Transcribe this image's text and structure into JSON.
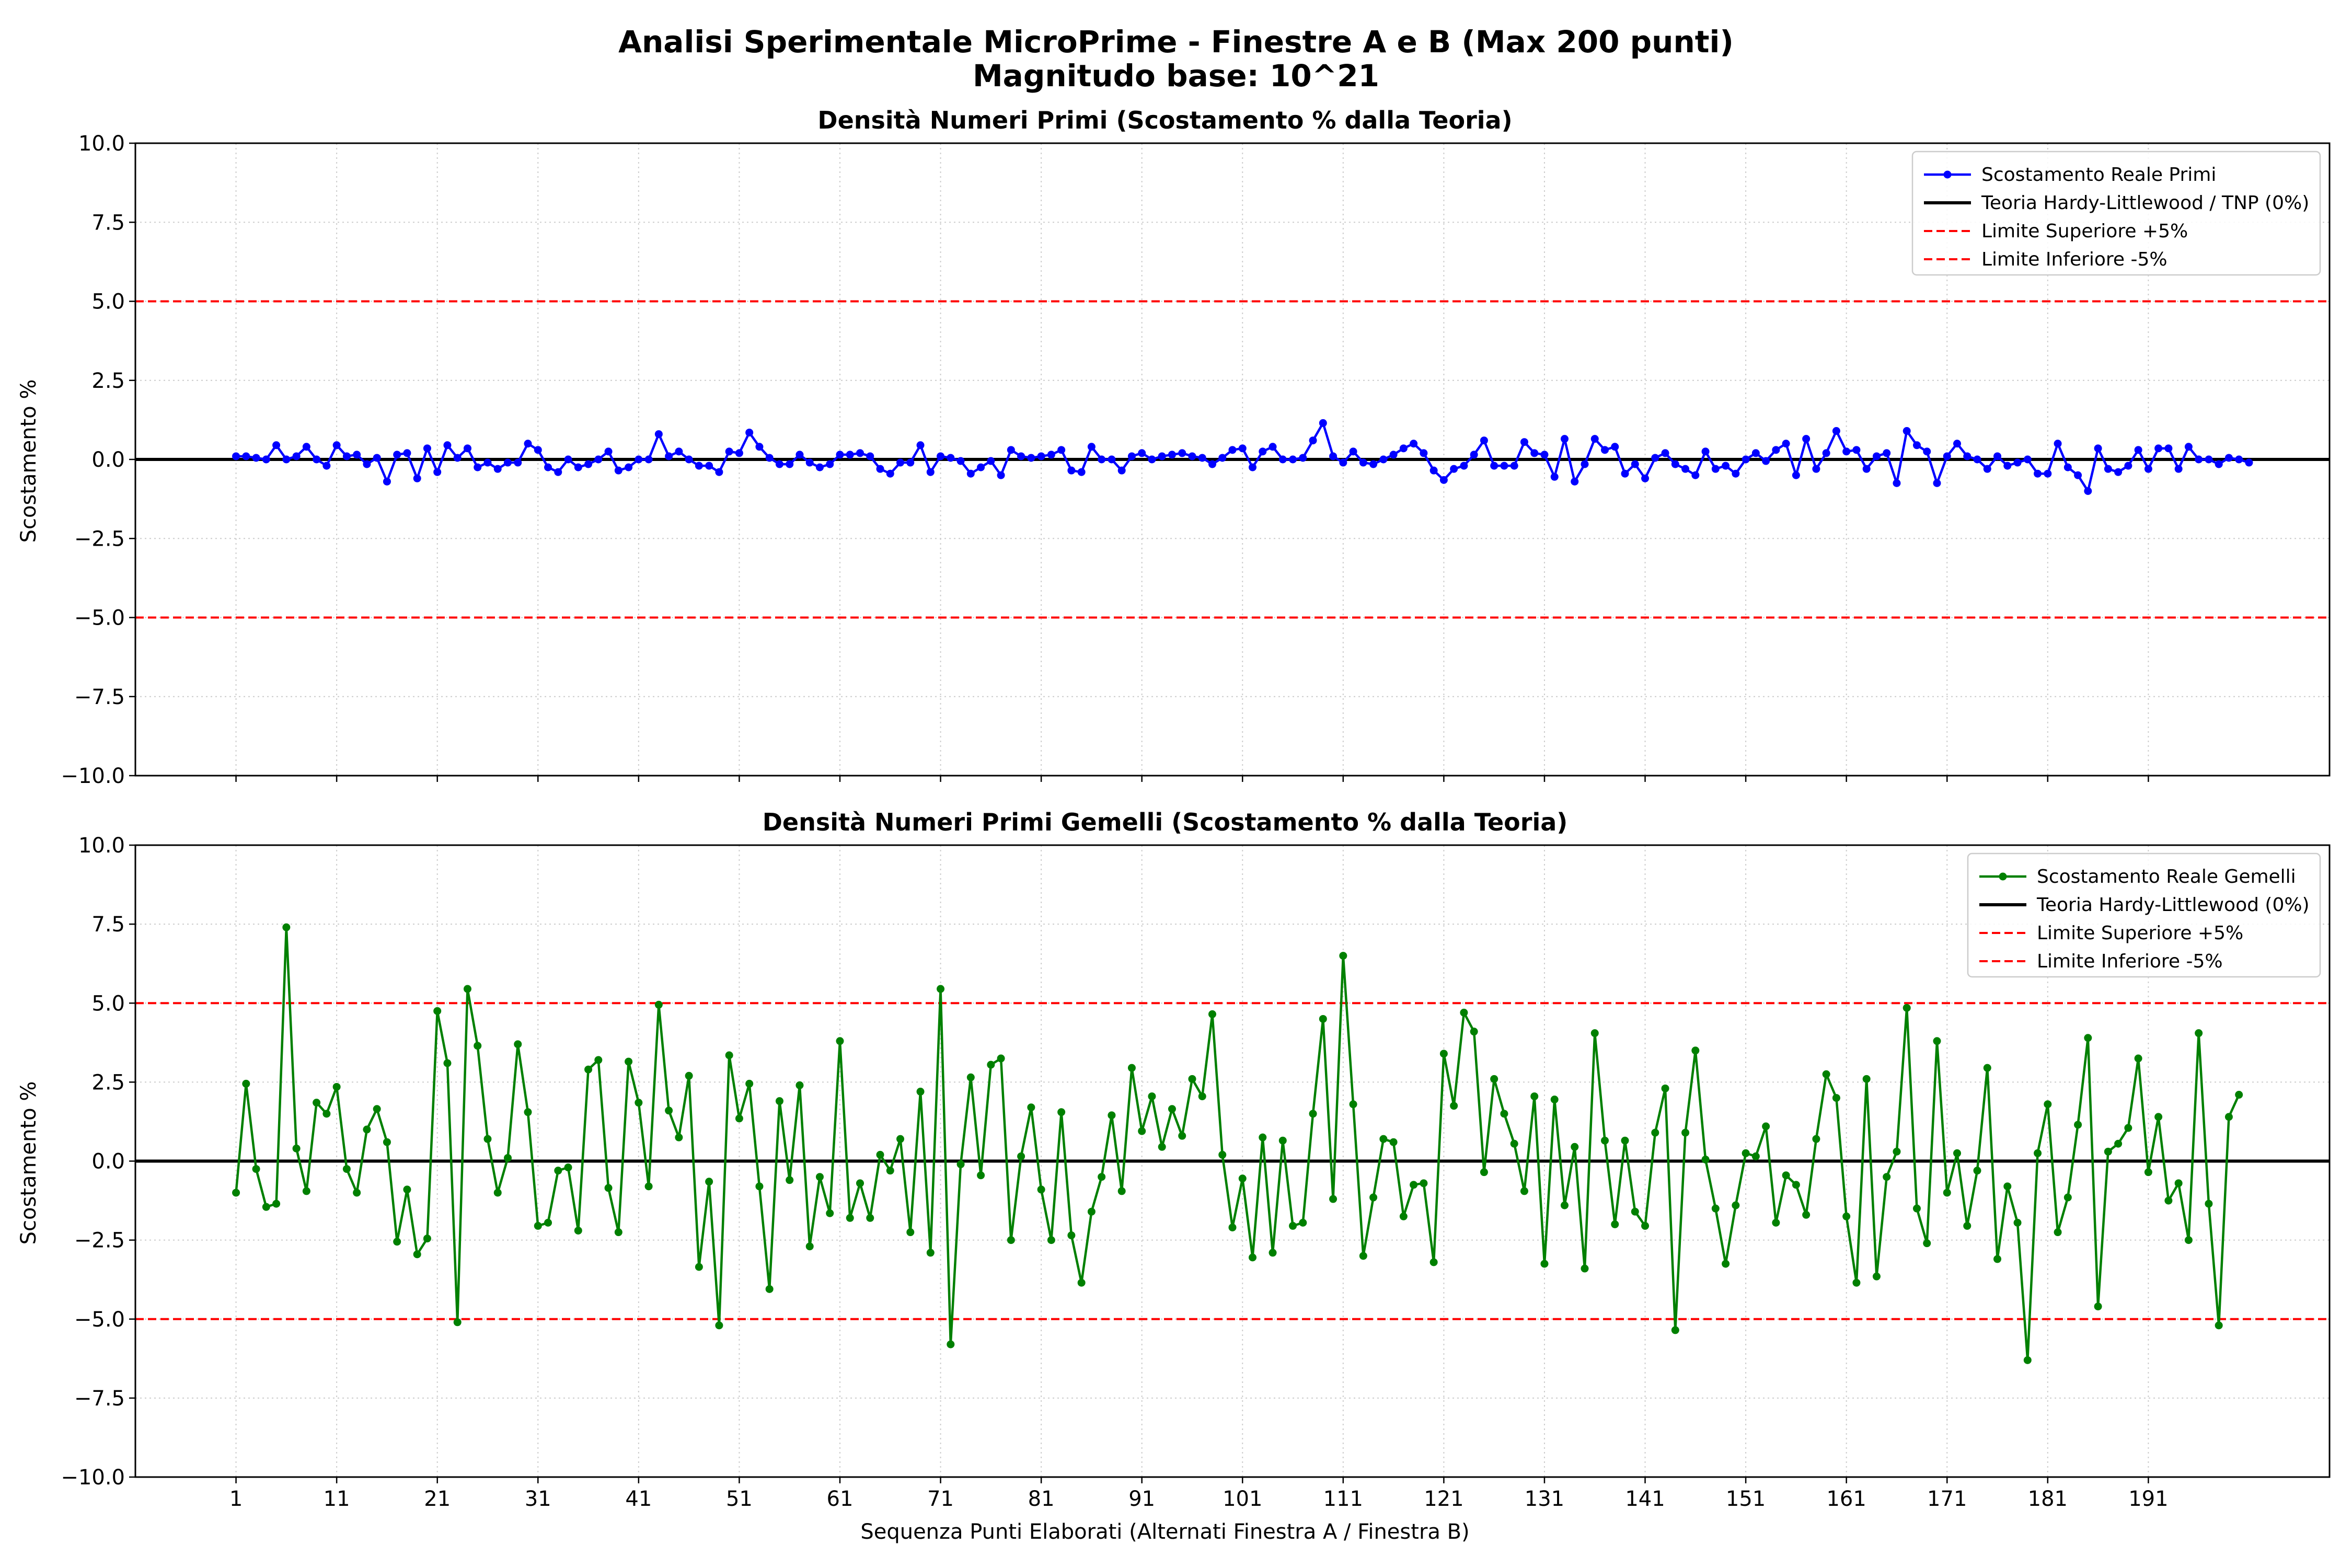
{
  "figure": {
    "title_line1": "Analisi Sperimentale MicroPrime - Finestre A e B (Max 200 punti)",
    "title_line2": "Magnitudo base: 10^21",
    "xlabel": "Sequenza Punti Elaborati (Alternati Finestra A / Finestra B)"
  },
  "chart_data": [
    {
      "type": "line",
      "title": "Densità Numeri Primi (Scostamento % dalla Teoria)",
      "xlabel": "",
      "ylabel": "Scostamento %",
      "xlim": [
        -9,
        209
      ],
      "ylim": [
        -10,
        10
      ],
      "yticks": [
        "10.0",
        "7.5",
        "5.0",
        "2.5",
        "0.0",
        "−2.5",
        "−5.0",
        "−7.5",
        "−10.0"
      ],
      "ytick_values": [
        10,
        7.5,
        5,
        2.5,
        0,
        -2.5,
        -5,
        -7.5,
        -10
      ],
      "xticks": [
        1,
        11,
        21,
        31,
        41,
        51,
        61,
        71,
        81,
        91,
        101,
        111,
        121,
        131,
        141,
        151,
        161,
        171,
        181,
        191
      ],
      "show_xtick_labels": false,
      "grid": true,
      "legend_position": "upper right",
      "series": [
        {
          "name": "Scostamento Reale Primi",
          "color": "#0000ff",
          "style": "line-marker",
          "x_start": 1,
          "values": [
            0.1,
            0.1,
            0.05,
            0.0,
            0.45,
            0.0,
            0.1,
            0.4,
            0.0,
            -0.2,
            0.45,
            0.1,
            0.15,
            -0.15,
            0.05,
            -0.7,
            0.15,
            0.2,
            -0.6,
            0.35,
            -0.4,
            0.45,
            0.05,
            0.35,
            -0.25,
            -0.1,
            -0.3,
            -0.1,
            -0.1,
            0.5,
            0.3,
            -0.25,
            -0.4,
            0.0,
            -0.25,
            -0.15,
            0.0,
            0.25,
            -0.35,
            -0.25,
            0.0,
            0.0,
            0.8,
            0.1,
            0.25,
            0.0,
            -0.2,
            -0.2,
            -0.4,
            0.25,
            0.2,
            0.85,
            0.4,
            0.05,
            -0.15,
            -0.15,
            0.15,
            -0.1,
            -0.25,
            -0.15,
            0.15,
            0.15,
            0.2,
            0.1,
            -0.3,
            -0.45,
            -0.1,
            -0.1,
            0.45,
            -0.4,
            0.1,
            0.05,
            -0.05,
            -0.45,
            -0.25,
            -0.05,
            -0.5,
            0.3,
            0.1,
            0.05,
            0.1,
            0.15,
            0.3,
            -0.35,
            -0.4,
            0.4,
            0.0,
            0.0,
            -0.35,
            0.1,
            0.2,
            0.0,
            0.1,
            0.15,
            0.2,
            0.1,
            0.05,
            -0.15,
            0.05,
            0.3,
            0.35,
            -0.25,
            0.25,
            0.4,
            0.0,
            0.0,
            0.05,
            0.6,
            1.15,
            0.1,
            -0.1,
            0.25,
            -0.1,
            -0.15,
            0.0,
            0.15,
            0.35,
            0.5,
            0.2,
            -0.35,
            -0.65,
            -0.3,
            -0.2,
            0.15,
            0.6,
            -0.2,
            -0.2,
            -0.2,
            0.55,
            0.2,
            0.15,
            -0.55,
            0.65,
            -0.7,
            -0.15,
            0.65,
            0.3,
            0.4,
            -0.45,
            -0.15,
            -0.6,
            0.05,
            0.2,
            -0.15,
            -0.3,
            -0.5,
            0.25,
            -0.3,
            -0.2,
            -0.45,
            0.0,
            0.2,
            -0.05,
            0.3,
            0.5,
            -0.5,
            0.65,
            -0.3,
            0.2,
            0.9,
            0.25,
            0.3,
            -0.3,
            0.1,
            0.2,
            -0.75,
            0.9,
            0.45,
            0.25,
            -0.75,
            0.1,
            0.5,
            0.1,
            0.0,
            -0.3,
            0.1,
            -0.2,
            -0.1,
            0.0,
            -0.45,
            -0.45,
            0.5,
            -0.25,
            -0.5,
            -1.0,
            0.35,
            -0.3,
            -0.4,
            -0.2,
            0.3,
            -0.3,
            0.35,
            0.35,
            -0.3,
            0.4,
            0.0,
            0.0,
            -0.15,
            0.05,
            0.0,
            -0.1
          ]
        },
        {
          "name": "Teoria Hardy-Littlewood / TNP (0%)",
          "color": "#000000",
          "style": "hline",
          "y": 0
        },
        {
          "name": "Limite Superiore +5%",
          "color": "#ff0000",
          "style": "dashed-hline",
          "y": 5
        },
        {
          "name": "Limite Inferiore -5%",
          "color": "#ff0000",
          "style": "dashed-hline",
          "y": -5
        }
      ]
    },
    {
      "type": "line",
      "title": "Densità Numeri Primi Gemelli (Scostamento % dalla Teoria)",
      "xlabel": "Sequenza Punti Elaborati (Alternati Finestra A / Finestra B)",
      "ylabel": "Scostamento %",
      "xlim": [
        -9,
        209
      ],
      "ylim": [
        -10,
        10
      ],
      "yticks": [
        "10.0",
        "7.5",
        "5.0",
        "2.5",
        "0.0",
        "−2.5",
        "−5.0",
        "−7.5",
        "−10.0"
      ],
      "ytick_values": [
        10,
        7.5,
        5,
        2.5,
        0,
        -2.5,
        -5,
        -7.5,
        -10
      ],
      "xticks": [
        1,
        11,
        21,
        31,
        41,
        51,
        61,
        71,
        81,
        91,
        101,
        111,
        121,
        131,
        141,
        151,
        161,
        171,
        181,
        191
      ],
      "show_xtick_labels": true,
      "grid": true,
      "legend_position": "upper right",
      "series": [
        {
          "name": "Scostamento Reale Gemelli",
          "color": "#008000",
          "style": "line-marker",
          "x_start": 1,
          "values": [
            -1.0,
            2.45,
            -0.25,
            -1.45,
            -1.35,
            7.4,
            0.4,
            -0.95,
            1.85,
            1.5,
            2.35,
            -0.25,
            -1.0,
            1.0,
            1.65,
            0.6,
            -2.55,
            -0.9,
            -2.95,
            -2.45,
            4.75,
            3.1,
            -5.1,
            5.45,
            3.65,
            0.7,
            -1.0,
            0.1,
            3.7,
            1.55,
            -2.05,
            -1.95,
            -0.3,
            -0.2,
            -2.2,
            2.9,
            3.2,
            -0.85,
            -2.25,
            3.15,
            1.85,
            -0.8,
            4.95,
            1.6,
            0.75,
            2.7,
            -3.35,
            -0.65,
            -5.2,
            3.35,
            1.35,
            2.45,
            -0.8,
            -4.05,
            1.9,
            -0.6,
            2.4,
            -2.7,
            -0.5,
            -1.65,
            3.8,
            -1.8,
            -0.7,
            -1.8,
            0.2,
            -0.3,
            0.7,
            -2.25,
            2.2,
            -2.9,
            5.45,
            -5.8,
            -0.1,
            2.65,
            -0.45,
            3.05,
            3.25,
            -2.5,
            0.15,
            1.7,
            -0.9,
            -2.5,
            1.55,
            -2.35,
            -3.85,
            -1.6,
            -0.5,
            1.45,
            -0.95,
            2.95,
            0.95,
            2.05,
            0.45,
            1.65,
            0.8,
            2.6,
            2.05,
            4.65,
            0.2,
            -2.1,
            -0.55,
            -3.05,
            0.75,
            -2.9,
            0.65,
            -2.05,
            -1.95,
            1.5,
            4.5,
            -1.2,
            6.5,
            1.8,
            -3.0,
            -1.15,
            0.7,
            0.6,
            -1.75,
            -0.75,
            -0.7,
            -3.2,
            3.4,
            1.75,
            4.7,
            4.1,
            -0.35,
            2.6,
            1.5,
            0.55,
            -0.95,
            2.05,
            -3.25,
            1.95,
            -1.4,
            0.45,
            -3.4,
            4.05,
            0.65,
            -2.0,
            0.65,
            -1.6,
            -2.05,
            0.9,
            2.3,
            -5.35,
            0.9,
            3.5,
            0.05,
            -1.5,
            -3.25,
            -1.4,
            0.25,
            0.15,
            1.1,
            -1.95,
            -0.45,
            -0.75,
            -1.7,
            0.7,
            2.75,
            2.0,
            -1.75,
            -3.85,
            2.6,
            -3.65,
            -0.5,
            0.3,
            4.85,
            -1.5,
            -2.6,
            3.8,
            -1.0,
            0.25,
            -2.05,
            -0.3,
            2.95,
            -3.1,
            -0.8,
            -1.95,
            -6.3,
            0.25,
            1.8,
            -2.25,
            -1.15,
            1.15,
            3.9,
            -4.6,
            0.3,
            0.55,
            1.05,
            3.25,
            -0.35,
            1.4,
            -1.25,
            -0.7,
            -2.5,
            4.05,
            -1.35,
            -5.2,
            1.4,
            2.1
          ]
        },
        {
          "name": "Teoria Hardy-Littlewood (0%)",
          "color": "#000000",
          "style": "hline",
          "y": 0
        },
        {
          "name": "Limite Superiore +5%",
          "color": "#ff0000",
          "style": "dashed-hline",
          "y": 5
        },
        {
          "name": "Limite Inferiore -5%",
          "color": "#ff0000",
          "style": "dashed-hline",
          "y": -5
        }
      ]
    }
  ]
}
